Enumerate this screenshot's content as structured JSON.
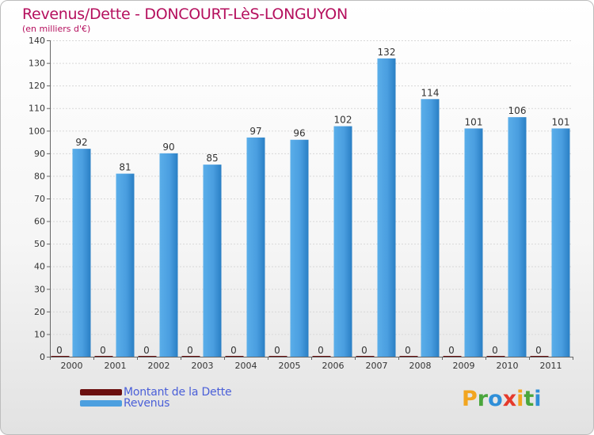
{
  "title": "Revenus/Dette - DONCOURT-LèS-LONGUYON",
  "subtitle": "(en milliers d'€)",
  "logo": {
    "text": "Proxiti",
    "letters": [
      {
        "ch": "P",
        "color": "#f2a51f"
      },
      {
        "ch": "r",
        "color": "#4aa63c"
      },
      {
        "ch": "o",
        "color": "#2f8fd8"
      },
      {
        "ch": "x",
        "color": "#e53a2b"
      },
      {
        "ch": "i",
        "color": "#f2a51f"
      },
      {
        "ch": "t",
        "color": "#4aa63c"
      },
      {
        "ch": "i",
        "color": "#2f8fd8"
      }
    ]
  },
  "legend": [
    {
      "label": "Montant de la Dette",
      "color": "#6b0f0f"
    },
    {
      "label": "Revenus",
      "color": "#4c9fdf"
    }
  ],
  "chart_data": {
    "type": "bar",
    "title": "Revenus/Dette - DONCOURT-LèS-LONGUYON",
    "ylabel": "(en milliers d'€)",
    "xlabel": "",
    "ylim": [
      0,
      140
    ],
    "yticks": [
      0,
      10,
      20,
      30,
      40,
      50,
      60,
      70,
      80,
      90,
      100,
      110,
      120,
      130,
      140
    ],
    "grid": true,
    "categories": [
      "2000",
      "2001",
      "2002",
      "2003",
      "2004",
      "2005",
      "2006",
      "2007",
      "2008",
      "2009",
      "2010",
      "2011"
    ],
    "series": [
      {
        "name": "Montant de la Dette",
        "color": "#6b0f0f",
        "values": [
          0,
          0,
          0,
          0,
          0,
          0,
          0,
          0,
          0,
          0,
          0,
          0
        ]
      },
      {
        "name": "Revenus",
        "color": "#4c9fdf",
        "values": [
          92,
          81,
          90,
          85,
          97,
          96,
          102,
          132,
          114,
          101,
          106,
          101
        ]
      }
    ]
  }
}
